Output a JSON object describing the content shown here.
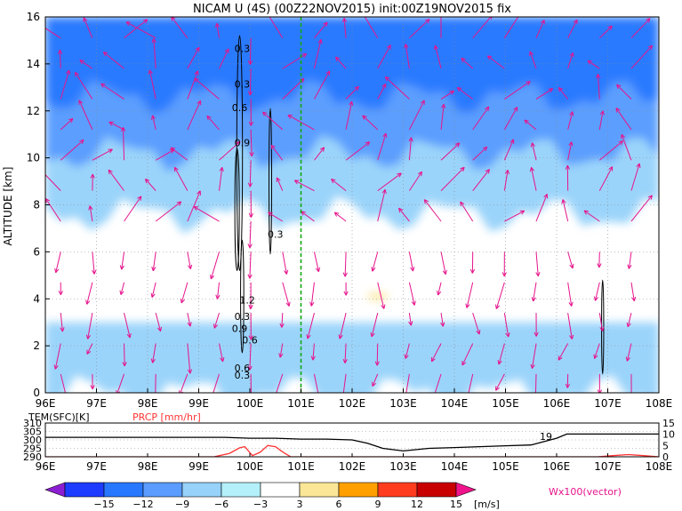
{
  "chart_data": [
    {
      "type": "heatmap",
      "title": "NICAM U (4S) (00Z22NOV2015) init:00Z19NOV2015 fix",
      "ylabel": "ALTITUDE [km]",
      "x_ticks": [
        "96E",
        "97E",
        "98E",
        "99E",
        "100E",
        "101E",
        "102E",
        "103E",
        "104E",
        "105E",
        "106E",
        "107E",
        "108E"
      ],
      "y_ticks": [
        "0",
        "2",
        "4",
        "6",
        "8",
        "10",
        "12",
        "14",
        "16"
      ],
      "xlim": [
        96,
        108
      ],
      "ylim": [
        0,
        16
      ],
      "grid": true,
      "marker_lon": 101.0,
      "contour_labels": [
        "0.3",
        "0.3",
        "0.3",
        "0.6",
        "0.9",
        "1.2",
        "0.3",
        "0.6",
        "0.9",
        "0.6",
        "0.3"
      ],
      "shaded_layers": [
        {
          "level": "-6 to -3",
          "y_from": 7.6,
          "y_to": 16
        },
        {
          "level": "-9 to -6",
          "y_from": 10.2,
          "y_to": 16
        },
        {
          "level": "-12 to -9",
          "y_from": 12.6,
          "y_to": 16
        },
        {
          "level": "-6 to -3",
          "y_from": 0,
          "y_to": 3.0
        },
        {
          "level": "3 to 6",
          "x": 102.5,
          "y": 4.1
        }
      ]
    },
    {
      "type": "line",
      "ylabel_left": "TEM(SFC)[K]",
      "ylabel_right": "PRCP [mm/hr]",
      "left_ticks": [
        "310",
        "305",
        "300",
        "295",
        "290"
      ],
      "right_ticks": [
        "15",
        "10",
        "5",
        "0"
      ],
      "x_ticks": [
        "96E",
        "97E",
        "98E",
        "99E",
        "100E",
        "101E",
        "102E",
        "103E",
        "104E",
        "105E",
        "106E",
        "107E",
        "108E"
      ],
      "max_label": "19",
      "series": [
        {
          "name": "TEM(SFC)[K]",
          "x": [
            96,
            97,
            98,
            99,
            99.5,
            100,
            100.5,
            101,
            101.5,
            102,
            102.3,
            102.6,
            103,
            103.5,
            104,
            104.5,
            105,
            105.5,
            106,
            106.2,
            107,
            108
          ],
          "values": [
            301.5,
            301.5,
            301.5,
            301.5,
            301.5,
            301.0,
            301.0,
            300.5,
            300.5,
            300.0,
            298.0,
            295.0,
            293.5,
            295.0,
            295.5,
            296.0,
            296.5,
            297.0,
            301.0,
            303.5,
            303.5,
            303.5
          ]
        },
        {
          "name": "PRCP [mm/hr]",
          "x": [
            96,
            99.3,
            99.6,
            99.8,
            99.9,
            100.05,
            100.2,
            100.35,
            100.5,
            100.65,
            100.8,
            101,
            106.8,
            107.1,
            107.4,
            107.7,
            108
          ],
          "values": [
            0,
            0,
            1.5,
            4,
            4.5,
            0.5,
            2,
            5,
            4.5,
            2,
            0,
            0,
            0,
            0.5,
            1,
            0.5,
            0
          ]
        }
      ]
    }
  ],
  "colorbar": {
    "ticks": [
      "−15",
      "−12",
      "−9",
      "−6",
      "−3",
      "3",
      "6",
      "9",
      "12",
      "15"
    ],
    "colors": [
      "#8c1ed2",
      "#1e3cff",
      "#2878ff",
      "#5a9cff",
      "#96d2fa",
      "#b4f0fa",
      "#ffffff",
      "#fae696",
      "#ffa000",
      "#ff3c1e",
      "#c80000",
      "#f0148c"
    ],
    "unit": "[m/s]"
  },
  "vector_label": "Wx100(vector)",
  "colors": {
    "vector": "#e6148c",
    "marker": "#11aa11",
    "prcp": "#ff3333"
  }
}
